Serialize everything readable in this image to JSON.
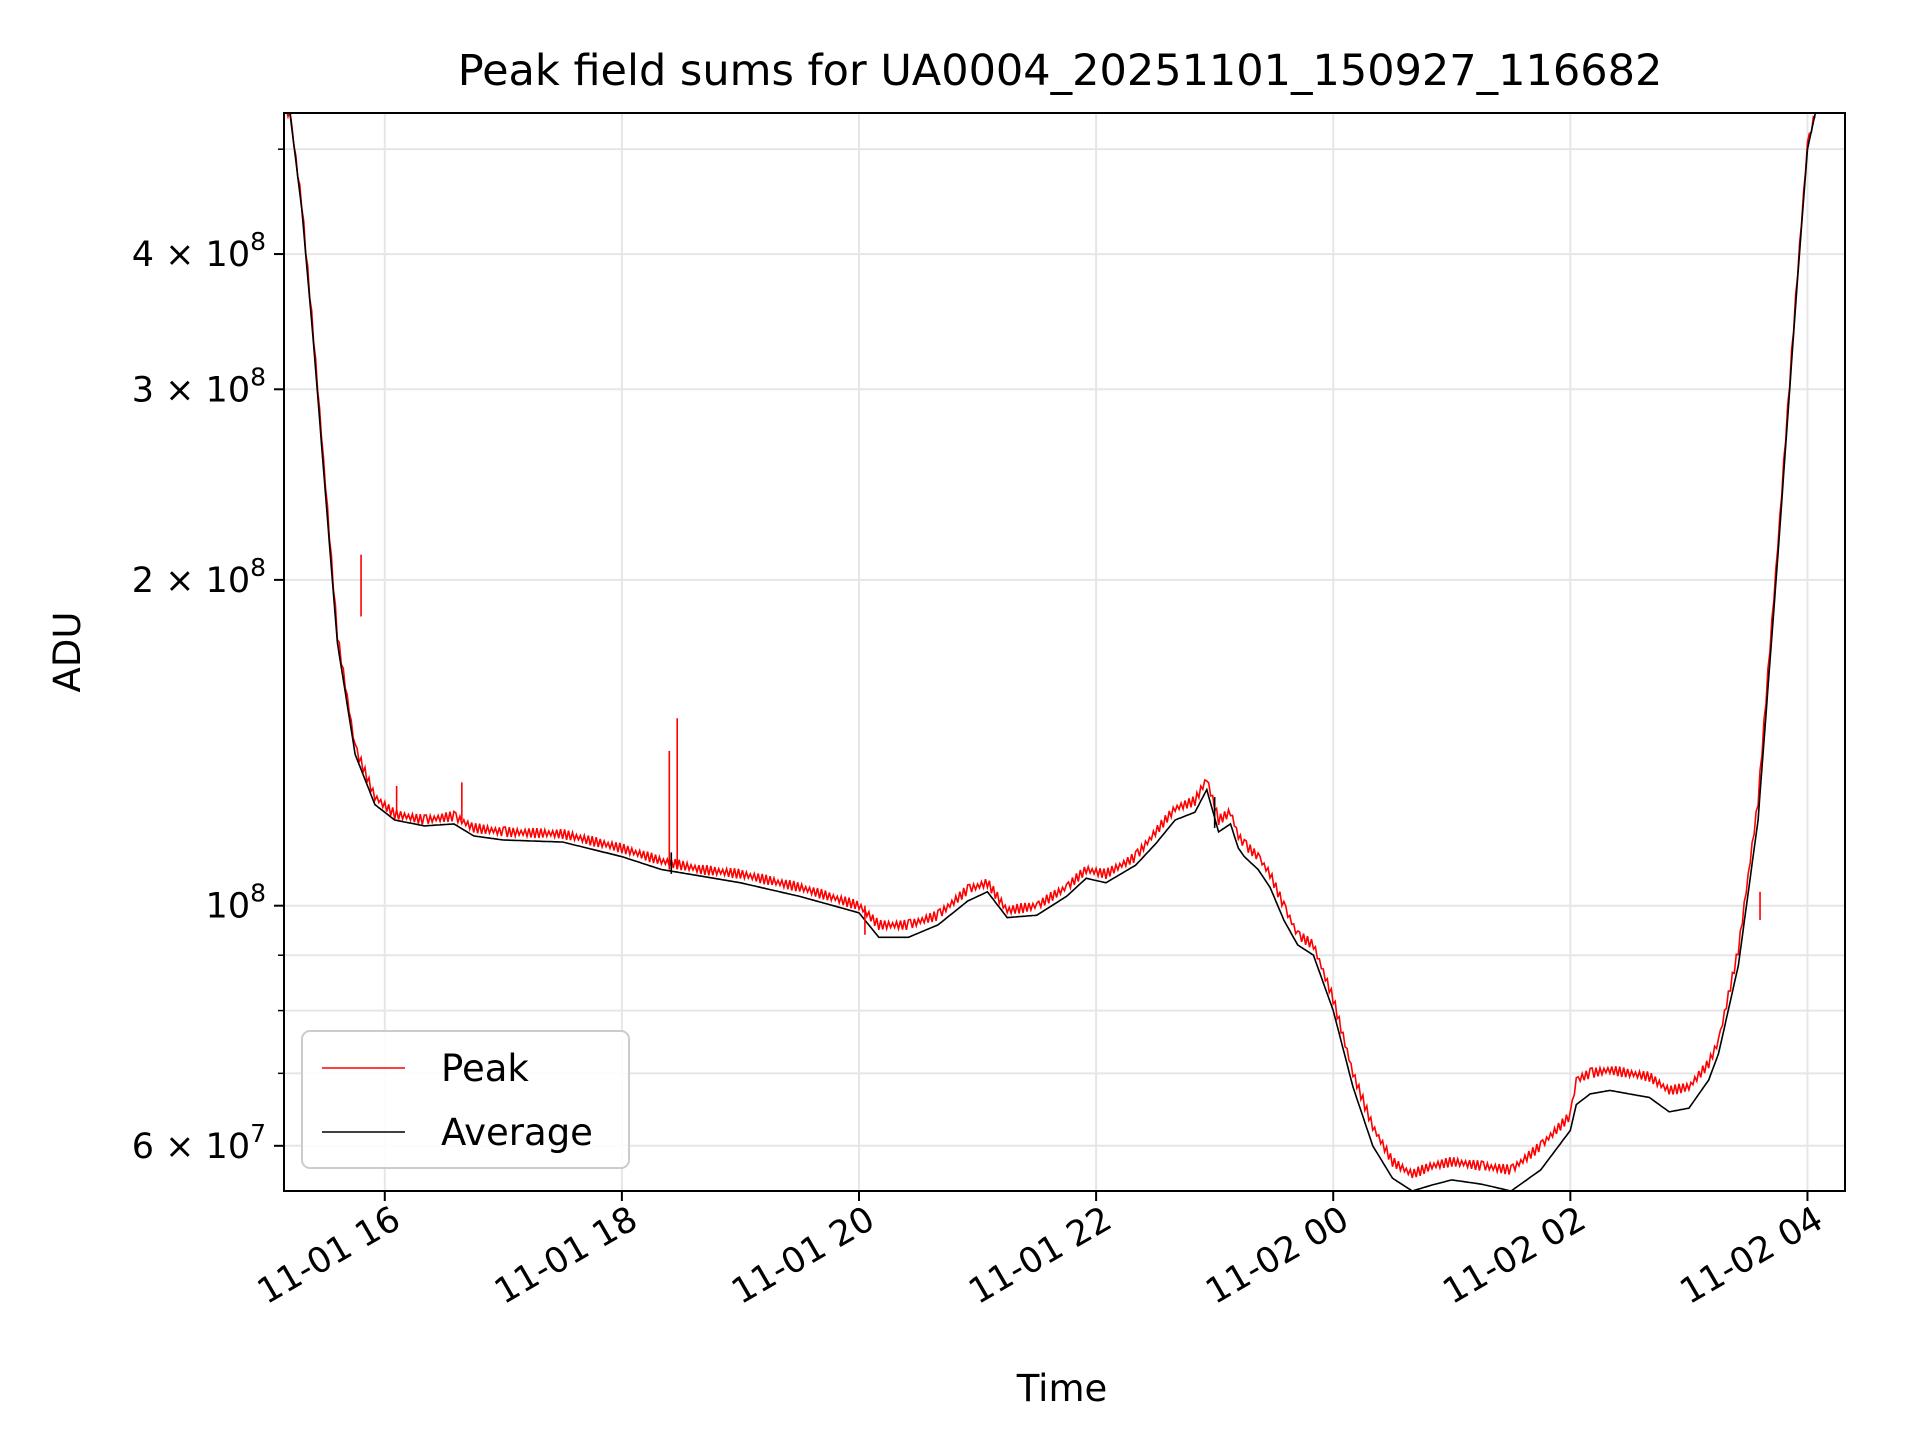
{
  "chart_data": {
    "type": "line",
    "title": "Peak field sums for UA0004_20251101_150927_116682",
    "xlabel": "Time",
    "ylabel": "ADU",
    "y_scale": "log",
    "ylim": [
      54500000,
      540000000
    ],
    "xlim": [
      "2025-11-01 15:09",
      "2025-11-02 04:19"
    ],
    "grid": true,
    "legend": {
      "placement": "lower-left",
      "entries": [
        "Peak",
        "Average"
      ]
    },
    "colors": {
      "Peak": "#ff0000",
      "Average": "#000000",
      "grid": "#e6e6e6"
    },
    "x_ticks": [
      {
        "label": "11-01 16",
        "value": "2025-11-01 16:00"
      },
      {
        "label": "11-01 18",
        "value": "2025-11-01 18:00"
      },
      {
        "label": "11-01 20",
        "value": "2025-11-01 20:00"
      },
      {
        "label": "11-01 22",
        "value": "2025-11-01 22:00"
      },
      {
        "label": "11-02 00",
        "value": "2025-11-02 00:00"
      },
      {
        "label": "11-02 02",
        "value": "2025-11-02 02:00"
      },
      {
        "label": "11-02 04",
        "value": "2025-11-02 04:00"
      }
    ],
    "y_ticks": [
      {
        "mantissa": "4",
        "exp": "8",
        "value": 400000000,
        "plain": false
      },
      {
        "mantissa": "3",
        "exp": "8",
        "value": 300000000,
        "plain": false
      },
      {
        "mantissa": "2",
        "exp": "8",
        "value": 200000000,
        "plain": false
      },
      {
        "mantissa": "10",
        "exp": "8",
        "value": 100000000,
        "plain": true
      },
      {
        "mantissa": "6",
        "exp": "7",
        "value": 60000000,
        "plain": false
      }
    ],
    "y_minor_ticks": [
      500000000,
      90000000,
      80000000,
      70000000
    ],
    "series": [
      {
        "name": "Average",
        "x": [
          "2025-11-01 15:09",
          "2025-11-01 15:12",
          "2025-11-01 15:18",
          "2025-11-01 15:24",
          "2025-11-01 15:30",
          "2025-11-01 15:36",
          "2025-11-01 15:45",
          "2025-11-01 15:55",
          "2025-11-01 16:05",
          "2025-11-01 16:20",
          "2025-11-01 16:35",
          "2025-11-01 16:45",
          "2025-11-01 17:00",
          "2025-11-01 17:30",
          "2025-11-01 18:00",
          "2025-11-01 18:20",
          "2025-11-01 18:40",
          "2025-11-01 19:00",
          "2025-11-01 19:30",
          "2025-11-01 20:00",
          "2025-11-01 20:10",
          "2025-11-01 20:25",
          "2025-11-01 20:40",
          "2025-11-01 20:55",
          "2025-11-01 21:05",
          "2025-11-01 21:15",
          "2025-11-01 21:30",
          "2025-11-01 21:45",
          "2025-11-01 21:55",
          "2025-11-01 22:05",
          "2025-11-01 22:20",
          "2025-11-01 22:30",
          "2025-11-01 22:40",
          "2025-11-01 22:50",
          "2025-11-01 22:56",
          "2025-11-01 23:02",
          "2025-11-01 23:08",
          "2025-11-01 23:12",
          "2025-11-01 23:15",
          "2025-11-01 23:22",
          "2025-11-01 23:28",
          "2025-11-01 23:35",
          "2025-11-01 23:42",
          "2025-11-01 23:50",
          "2025-11-02 00:00",
          "2025-11-02 00:10",
          "2025-11-02 00:20",
          "2025-11-02 00:30",
          "2025-11-02 00:40",
          "2025-11-02 00:50",
          "2025-11-02 01:00",
          "2025-11-02 01:15",
          "2025-11-02 01:30",
          "2025-11-02 01:45",
          "2025-11-02 02:00",
          "2025-11-02 02:03",
          "2025-11-02 02:10",
          "2025-11-02 02:20",
          "2025-11-02 02:40",
          "2025-11-02 02:50",
          "2025-11-02 03:00",
          "2025-11-02 03:10",
          "2025-11-02 03:15",
          "2025-11-02 03:25",
          "2025-11-02 03:35",
          "2025-11-02 03:45",
          "2025-11-02 03:55",
          "2025-11-02 04:00",
          "2025-11-02 04:04"
        ],
        "values": [
          540000000,
          540000000,
          440000000,
          330000000,
          240000000,
          175000000,
          138000000,
          124000000,
          120000000,
          118500000,
          119000000,
          116000000,
          115000000,
          114500000,
          111000000,
          108000000,
          106500000,
          105000000,
          102000000,
          98500000,
          93500000,
          93500000,
          96000000,
          101000000,
          103000000,
          97500000,
          98000000,
          102000000,
          106000000,
          105000000,
          109000000,
          114000000,
          120000000,
          122000000,
          128000000,
          117000000,
          119000000,
          113000000,
          111000000,
          108000000,
          104000000,
          97000000,
          92000000,
          90000000,
          80000000,
          68000000,
          60000000,
          56000000,
          54500000,
          55200000,
          55800000,
          55300000,
          54500000,
          57000000,
          62000000,
          65500000,
          67000000,
          67500000,
          66500000,
          64500000,
          65000000,
          69000000,
          73000000,
          88000000,
          120000000,
          210000000,
          380000000,
          500000000,
          540000000
        ]
      },
      {
        "name": "Peak",
        "x": [
          "2025-11-01 15:09",
          "2025-11-01 15:12",
          "2025-11-01 15:18",
          "2025-11-01 15:24",
          "2025-11-01 15:30",
          "2025-11-01 15:36",
          "2025-11-01 15:45",
          "2025-11-01 15:55",
          "2025-11-01 16:05",
          "2025-11-01 16:20",
          "2025-11-01 16:35",
          "2025-11-01 16:45",
          "2025-11-01 17:00",
          "2025-11-01 17:30",
          "2025-11-01 18:00",
          "2025-11-01 18:20",
          "2025-11-01 18:40",
          "2025-11-01 19:00",
          "2025-11-01 19:30",
          "2025-11-01 20:00",
          "2025-11-01 20:10",
          "2025-11-01 20:25",
          "2025-11-01 20:40",
          "2025-11-01 20:55",
          "2025-11-01 21:05",
          "2025-11-01 21:15",
          "2025-11-01 21:30",
          "2025-11-01 21:45",
          "2025-11-01 21:55",
          "2025-11-01 22:05",
          "2025-11-01 22:20",
          "2025-11-01 22:30",
          "2025-11-01 22:40",
          "2025-11-01 22:50",
          "2025-11-01 22:56",
          "2025-11-01 23:02",
          "2025-11-01 23:08",
          "2025-11-01 23:12",
          "2025-11-01 23:15",
          "2025-11-01 23:22",
          "2025-11-01 23:28",
          "2025-11-01 23:35",
          "2025-11-01 23:42",
          "2025-11-01 23:50",
          "2025-11-02 00:00",
          "2025-11-02 00:10",
          "2025-11-02 00:20",
          "2025-11-02 00:30",
          "2025-11-02 00:40",
          "2025-11-02 00:50",
          "2025-11-02 01:00",
          "2025-11-02 01:15",
          "2025-11-02 01:30",
          "2025-11-02 01:45",
          "2025-11-02 02:00",
          "2025-11-02 02:03",
          "2025-11-02 02:10",
          "2025-11-02 02:20",
          "2025-11-02 02:40",
          "2025-11-02 02:50",
          "2025-11-02 03:00",
          "2025-11-02 03:10",
          "2025-11-02 03:15",
          "2025-11-02 03:25",
          "2025-11-02 03:35",
          "2025-11-02 03:45",
          "2025-11-02 03:55",
          "2025-11-02 04:00",
          "2025-11-02 04:04"
        ],
        "values": [
          540000000,
          540000000,
          445000000,
          335000000,
          245000000,
          178000000,
          140000000,
          126000000,
          121500000,
          120000000,
          121000000,
          118000000,
          117000000,
          116500000,
          113000000,
          110000000,
          108000000,
          107000000,
          104000000,
          100000000,
          96000000,
          96000000,
          98000000,
          103500000,
          105000000,
          99000000,
          100000000,
          104000000,
          108000000,
          107000000,
          111000000,
          117000000,
          123000000,
          125000000,
          131000000,
          120000000,
          122000000,
          116000000,
          114000000,
          111000000,
          107000000,
          100000000,
          94000000,
          92000000,
          82000000,
          70000000,
          62500000,
          58000000,
          56500000,
          57500000,
          58000000,
          57500000,
          57000000,
          60000000,
          64000000,
          69000000,
          70000000,
          70500000,
          69500000,
          67500000,
          68000000,
          71500000,
          75000000,
          91000000,
          125000000,
          215000000,
          385000000,
          505000000,
          540000000
        ]
      }
    ],
    "spikes": [
      {
        "series": "Peak",
        "x": "2025-11-01 15:48",
        "base": 185000000,
        "top": 211000000
      },
      {
        "series": "Peak",
        "x": "2025-11-01 16:06",
        "base": 122000000,
        "top": 129000000
      },
      {
        "series": "Peak",
        "x": "2025-11-01 16:39",
        "base": 120000000,
        "top": 130000000
      },
      {
        "series": "Peak",
        "x": "2025-11-01 18:24",
        "base": 108000000,
        "top": 139000000
      },
      {
        "series": "Peak",
        "x": "2025-11-01 18:28",
        "base": 108000000,
        "top": 149000000
      },
      {
        "series": "Peak",
        "x": "2025-11-01 20:03",
        "base": 94000000,
        "top": 100000000
      },
      {
        "series": "Peak",
        "x": "2025-11-02 03:36",
        "base": 97000000,
        "top": 103000000
      },
      {
        "series": "Average",
        "x": "2025-11-01 18:25",
        "base": 107000000,
        "top": 112000000
      },
      {
        "series": "Average",
        "x": "2025-11-01 23:00",
        "base": 118000000,
        "top": 126000000
      }
    ]
  }
}
